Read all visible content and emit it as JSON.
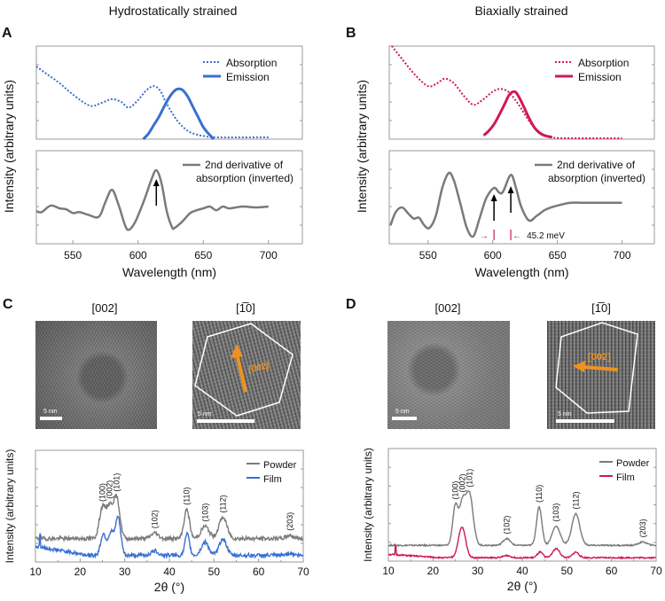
{
  "headings": {
    "left": "Hydrostatically strained",
    "right": "Biaxially strained"
  },
  "panel_labels": {
    "a": "A",
    "b": "B",
    "c": "C",
    "d": "D"
  },
  "tem": {
    "c_left_title": "[002]",
    "c_right_title": "[1̅0]",
    "d_left_title": "[002]",
    "d_right_title": "[1̅0]",
    "scale_bar": "5 nm",
    "direction_label": "[002]",
    "arrow_color": "#f0921e"
  },
  "colors": {
    "blue": "#3a6fd1",
    "red": "#d0185a",
    "gray": "#7a7a7a"
  },
  "chart_data": [
    {
      "panel": "A",
      "type": "line",
      "xlabel": "Wavelength (nm)",
      "ylabel": "Intensity (arbitrary units)",
      "xlim": [
        522,
        726
      ],
      "xticks": [
        550,
        600,
        650,
        700
      ],
      "top": {
        "legend": [
          "Absorption",
          "Emission"
        ],
        "legend_position": "top-right",
        "series": [
          {
            "name": "Absorption",
            "style": "dotted",
            "color": "#3a6fd1",
            "x": [
              522,
              530,
              540,
              550,
              563,
              572,
              580,
              587,
              593,
              600,
              606,
              612,
              617,
              622,
              630,
              638,
              645,
              652,
              660,
              700
            ],
            "y": [
              0.78,
              0.7,
              0.6,
              0.48,
              0.36,
              0.39,
              0.43,
              0.4,
              0.34,
              0.42,
              0.52,
              0.57,
              0.52,
              0.38,
              0.2,
              0.09,
              0.05,
              0.03,
              0.02,
              0.02
            ]
          },
          {
            "name": "Emission",
            "style": "solid",
            "color": "#3a6fd1",
            "x": [
              604,
              608,
              612,
              616,
              620,
              624,
              628,
              631,
              634,
              638,
              642,
              646,
              650,
              654,
              658
            ],
            "y": [
              0,
              0.06,
              0.15,
              0.24,
              0.35,
              0.45,
              0.52,
              0.54,
              0.53,
              0.46,
              0.35,
              0.24,
              0.13,
              0.06,
              0
            ]
          }
        ]
      },
      "bottom": {
        "legend": [
          "2nd derivative of",
          "absorption (inverted)"
        ],
        "legend_position": "top-right",
        "series": [
          {
            "name": "2nd derivative of absorption (inverted)",
            "color": "#7a7a7a",
            "x": [
              522,
              526,
              533,
              540,
              545,
              550,
              555,
              562,
              570,
              575,
              580,
              585,
              590,
              593,
              598,
              605,
              610,
              614,
              618,
              622,
              626,
              628,
              634,
              640,
              645,
              650,
              655,
              660,
              665,
              670,
              680,
              690,
              700
            ],
            "y": [
              0.35,
              0.34,
              0.41,
              0.38,
              0.37,
              0.33,
              0.34,
              0.31,
              0.29,
              0.45,
              0.58,
              0.42,
              0.2,
              0.15,
              0.24,
              0.48,
              0.68,
              0.79,
              0.65,
              0.35,
              0.18,
              0.17,
              0.24,
              0.33,
              0.36,
              0.38,
              0.4,
              0.36,
              0.4,
              0.38,
              0.4,
              0.39,
              0.4
            ]
          }
        ],
        "arrows_at": [
          614
        ]
      }
    },
    {
      "panel": "B",
      "type": "line",
      "xlabel": "Wavelength (nm)",
      "ylabel": "Intensity (arbitrary units)",
      "xlim": [
        520,
        725
      ],
      "xticks": [
        550,
        600,
        650,
        700
      ],
      "top": {
        "legend": [
          "Absorption",
          "Emission"
        ],
        "legend_position": "top-right",
        "series": [
          {
            "name": "Absorption",
            "style": "dotted",
            "color": "#d0185a",
            "x": [
              522,
              530,
              540,
              550,
              557,
              563,
              570,
              578,
              585,
              592,
              600,
              606,
              612,
              617,
              622,
              630,
              638,
              645,
              660,
              700
            ],
            "y": [
              1.0,
              0.86,
              0.69,
              0.57,
              0.6,
              0.65,
              0.6,
              0.46,
              0.37,
              0.42,
              0.51,
              0.54,
              0.51,
              0.43,
              0.33,
              0.16,
              0.06,
              0.02,
              0.01,
              0.01
            ]
          },
          {
            "name": "Emission",
            "style": "solid",
            "color": "#d0185a",
            "x": [
              593,
              597,
              601,
              605,
              609,
              613,
              617,
              620,
              624,
              628,
              632,
              636,
              640,
              646
            ],
            "y": [
              0.04,
              0.09,
              0.16,
              0.26,
              0.37,
              0.48,
              0.51,
              0.46,
              0.35,
              0.23,
              0.13,
              0.07,
              0.04,
              0.02
            ]
          }
        ]
      },
      "bottom": {
        "legend": [
          "2nd derivative of",
          "absorption (inverted)"
        ],
        "legend_position": "top-right",
        "series": [
          {
            "name": "2nd derivative of absorption (inverted)",
            "color": "#7a7a7a",
            "x": [
              521,
              525,
              530,
              535,
              539,
              543,
              547,
              551,
              556,
              561,
              566,
              570,
              575,
              580,
              585,
              590,
              595,
              601,
              605,
              608,
              614,
              618,
              622,
              628,
              634,
              640,
              645,
              650,
              660,
              670,
              680,
              690,
              700
            ],
            "y": [
              0.2,
              0.34,
              0.39,
              0.32,
              0.27,
              0.28,
              0.2,
              0.17,
              0.3,
              0.6,
              0.76,
              0.68,
              0.43,
              0.17,
              0.08,
              0.28,
              0.49,
              0.6,
              0.55,
              0.56,
              0.74,
              0.6,
              0.4,
              0.25,
              0.3,
              0.36,
              0.39,
              0.41,
              0.44,
              0.44,
              0.44,
              0.44,
              0.44
            ]
          }
        ],
        "arrows_at": [
          601,
          614
        ],
        "annotation": "45.2 meV"
      }
    },
    {
      "panel": "C",
      "type": "line",
      "xlabel": "2θ (°)",
      "ylabel": "Intensity (arbitrary units)",
      "xlim": [
        10,
        70
      ],
      "xticks": [
        10,
        20,
        30,
        40,
        50,
        60,
        70
      ],
      "legend": [
        "Powder",
        "Film"
      ],
      "legend_position": "top-right",
      "series": [
        {
          "name": "Powder",
          "color": "#7a7a7a",
          "baseline": 0.21,
          "peaks": [
            [
              25,
              0.27,
              0.7
            ],
            [
              26.6,
              0.27,
              0.7
            ],
            [
              28.2,
              0.36,
              0.7
            ],
            [
              36.7,
              0.05,
              0.8
            ],
            [
              43.9,
              0.26,
              0.6
            ],
            [
              48,
              0.11,
              0.9
            ],
            [
              52,
              0.19,
              0.9
            ],
            [
              67,
              0.03,
              0.8
            ]
          ]
        },
        {
          "name": "Film",
          "color": "#3a6fd1",
          "baseline_start": 0.14,
          "baseline_end": 0.06,
          "peaks": [
            [
              25.2,
              0.19,
              0.6
            ],
            [
              26.9,
              0.2,
              0.6
            ],
            [
              28.5,
              0.34,
              0.6
            ],
            [
              36.7,
              0.04,
              0.8
            ],
            [
              44,
              0.19,
              0.5
            ],
            [
              48,
              0.12,
              0.8
            ],
            [
              52,
              0.15,
              0.8
            ],
            [
              67,
              0.02,
              0.8
            ]
          ]
        }
      ],
      "peak_labels": [
        [
          "(100)",
          25
        ],
        [
          "(002)",
          26.6
        ],
        [
          "(101)",
          28.2
        ],
        [
          "(102)",
          36.7
        ],
        [
          "(110)",
          43.9
        ],
        [
          "(103)",
          48
        ],
        [
          "(112)",
          52
        ],
        [
          "(203)",
          67
        ]
      ]
    },
    {
      "panel": "D",
      "type": "line",
      "xlabel": "2θ (°)",
      "ylabel": "Intensity (arbitrary units)",
      "xlim": [
        10,
        70
      ],
      "xticks": [
        10,
        20,
        30,
        40,
        50,
        60,
        70
      ],
      "legend": [
        "Powder",
        "Film"
      ],
      "legend_position": "top-right",
      "series": [
        {
          "name": "Powder",
          "color": "#7a7a7a",
          "baseline": 0.14,
          "peaks": [
            [
              25,
              0.34,
              0.6
            ],
            [
              26.6,
              0.36,
              0.7
            ],
            [
              28.2,
              0.45,
              0.8
            ],
            [
              36.5,
              0.06,
              0.8
            ],
            [
              43.8,
              0.34,
              0.6
            ],
            [
              47.6,
              0.17,
              0.9
            ],
            [
              52,
              0.28,
              0.9
            ],
            [
              67,
              0.03,
              0.9
            ]
          ]
        },
        {
          "name": "Film",
          "color": "#d0185a",
          "baseline_start": 0.06,
          "baseline_end": 0.03,
          "peaks": [
            [
              26.5,
              0.27,
              0.8
            ],
            [
              36.5,
              0.02,
              0.8
            ],
            [
              44,
              0.05,
              0.6
            ],
            [
              47.6,
              0.08,
              0.8
            ],
            [
              52,
              0.05,
              0.7
            ]
          ]
        }
      ],
      "peak_labels": [
        [
          "(100)",
          25
        ],
        [
          "(002)",
          26.6
        ],
        [
          "(101)",
          28.2
        ],
        [
          "(102)",
          36.5
        ],
        [
          "(110)",
          43.8
        ],
        [
          "(103)",
          47.6
        ],
        [
          "(112)",
          52
        ],
        [
          "(203)",
          67
        ]
      ]
    }
  ]
}
